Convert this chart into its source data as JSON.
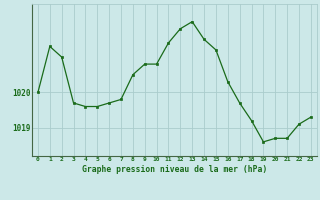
{
  "x": [
    0,
    1,
    2,
    3,
    4,
    5,
    6,
    7,
    8,
    9,
    10,
    11,
    12,
    13,
    14,
    15,
    16,
    17,
    18,
    19,
    20,
    21,
    22,
    23
  ],
  "y": [
    1020.0,
    1021.3,
    1021.0,
    1019.7,
    1019.6,
    1019.6,
    1019.7,
    1019.8,
    1020.5,
    1020.8,
    1020.8,
    1021.4,
    1021.8,
    1022.0,
    1021.5,
    1021.2,
    1020.3,
    1019.7,
    1019.2,
    1018.6,
    1018.7,
    1018.7,
    1019.1,
    1019.3
  ],
  "line_color": "#1a6b1a",
  "marker_color": "#1a6b1a",
  "bg_color": "#cce8e8",
  "grid_color": "#aacccc",
  "axis_label_color": "#1a6b1a",
  "title": "Graphe pression niveau de la mer (hPa)",
  "yticks": [
    1019,
    1020
  ],
  "xlim": [
    -0.5,
    23.5
  ],
  "ylim": [
    1018.2,
    1022.5
  ]
}
